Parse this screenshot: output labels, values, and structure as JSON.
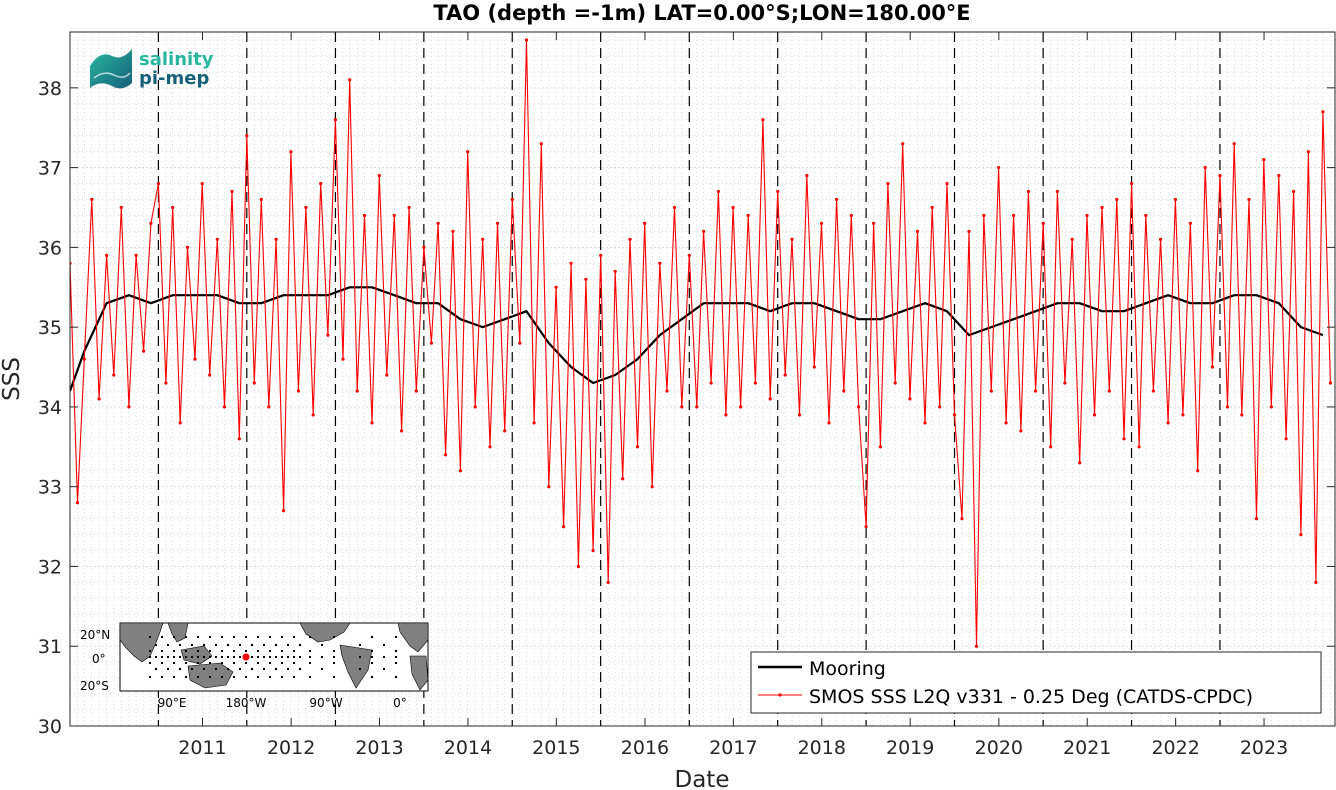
{
  "chart_data": {
    "type": "line",
    "title": "TAO (depth =-1m) LAT=0.00°S;LON=180.00°E",
    "xlabel": "Date",
    "ylabel": "SSS",
    "xlim": [
      "2010-01-01",
      "2024-04-20"
    ],
    "ylim": [
      30,
      38.7
    ],
    "grid": true,
    "minor_grid": true,
    "x_ticks": [
      "2011",
      "2012",
      "2013",
      "2014",
      "2015",
      "2016",
      "2017",
      "2018",
      "2019",
      "2020",
      "2021",
      "2022",
      "2023"
    ],
    "y_ticks": [
      "30",
      "31",
      "32",
      "33",
      "34",
      "35",
      "36",
      "37",
      "38"
    ],
    "year_divider_dates": [
      "2011-01-01",
      "2012-01-01",
      "2013-01-01",
      "2014-01-01",
      "2015-01-01",
      "2016-01-01",
      "2017-01-01",
      "2018-01-01",
      "2019-01-01",
      "2020-01-01",
      "2021-01-01",
      "2022-01-01",
      "2023-01-01"
    ],
    "legend_position": "bottom-right",
    "series": [
      {
        "name": "Mooring",
        "color": "#000000",
        "marker": "none",
        "x": [
          "2010-01-01",
          "2010-03-01",
          "2010-06-01",
          "2010-09-01",
          "2010-12-01",
          "2011-03-01",
          "2011-06-01",
          "2011-09-01",
          "2011-12-01",
          "2012-03-01",
          "2012-06-01",
          "2012-09-01",
          "2012-12-01",
          "2013-03-01",
          "2013-06-01",
          "2013-09-01",
          "2013-12-01",
          "2014-03-01",
          "2014-06-01",
          "2014-09-01",
          "2014-12-01",
          "2015-03-01",
          "2015-06-01",
          "2015-09-01",
          "2015-12-01",
          "2016-03-01",
          "2016-06-01",
          "2016-09-01",
          "2016-12-01",
          "2017-03-01",
          "2017-06-01",
          "2017-09-01",
          "2017-12-01",
          "2018-03-01",
          "2018-06-01",
          "2018-09-01",
          "2018-12-01",
          "2019-03-01",
          "2019-06-01",
          "2019-09-01",
          "2019-12-01",
          "2020-03-01",
          "2020-06-01",
          "2020-09-01",
          "2020-12-01",
          "2021-03-01",
          "2021-06-01",
          "2021-09-01",
          "2021-12-01",
          "2022-03-01",
          "2022-06-01",
          "2022-09-01",
          "2022-12-01",
          "2023-03-01",
          "2023-06-01",
          "2023-09-01",
          "2023-12-01",
          "2024-03-01"
        ],
        "values": [
          34.2,
          34.7,
          35.3,
          35.4,
          35.3,
          35.4,
          35.4,
          35.4,
          35.3,
          35.3,
          35.4,
          35.4,
          35.4,
          35.5,
          35.5,
          35.4,
          35.3,
          35.3,
          35.1,
          35.0,
          35.1,
          35.2,
          34.8,
          34.5,
          34.3,
          34.4,
          34.6,
          34.9,
          35.1,
          35.3,
          35.3,
          35.3,
          35.2,
          35.3,
          35.3,
          35.2,
          35.1,
          35.1,
          35.2,
          35.3,
          35.2,
          34.9,
          35.0,
          35.1,
          35.2,
          35.3,
          35.3,
          35.2,
          35.2,
          35.3,
          35.4,
          35.3,
          35.3,
          35.4,
          35.4,
          35.3,
          35.0,
          34.9
        ]
      },
      {
        "name": "SMOS SSS L2Q v331 - 0.25 Deg (CATDS-CPDC)",
        "color": "#ff0000",
        "marker": "dot",
        "x": [
          "2010-01-01",
          "2010-02-01",
          "2010-03-01",
          "2010-04-01",
          "2010-05-01",
          "2010-06-01",
          "2010-07-01",
          "2010-08-01",
          "2010-09-01",
          "2010-10-01",
          "2010-11-01",
          "2010-12-01",
          "2011-01-01",
          "2011-02-01",
          "2011-03-01",
          "2011-04-01",
          "2011-05-01",
          "2011-06-01",
          "2011-07-01",
          "2011-08-01",
          "2011-09-01",
          "2011-10-01",
          "2011-11-01",
          "2011-12-01",
          "2012-01-01",
          "2012-02-01",
          "2012-03-01",
          "2012-04-01",
          "2012-05-01",
          "2012-06-01",
          "2012-07-01",
          "2012-08-01",
          "2012-09-01",
          "2012-10-01",
          "2012-11-01",
          "2012-12-01",
          "2013-01-01",
          "2013-02-01",
          "2013-03-01",
          "2013-04-01",
          "2013-05-01",
          "2013-06-01",
          "2013-07-01",
          "2013-08-01",
          "2013-09-01",
          "2013-10-01",
          "2013-11-01",
          "2013-12-01",
          "2014-01-01",
          "2014-02-01",
          "2014-03-01",
          "2014-04-01",
          "2014-05-01",
          "2014-06-01",
          "2014-07-01",
          "2014-08-01",
          "2014-09-01",
          "2014-10-01",
          "2014-11-01",
          "2014-12-01",
          "2015-01-01",
          "2015-02-01",
          "2015-03-01",
          "2015-04-01",
          "2015-05-01",
          "2015-06-01",
          "2015-07-01",
          "2015-08-01",
          "2015-09-01",
          "2015-10-01",
          "2015-11-01",
          "2015-12-01",
          "2016-01-01",
          "2016-02-01",
          "2016-03-01",
          "2016-04-01",
          "2016-05-01",
          "2016-06-01",
          "2016-07-01",
          "2016-08-01",
          "2016-09-01",
          "2016-10-01",
          "2016-11-01",
          "2016-12-01",
          "2017-01-01",
          "2017-02-01",
          "2017-03-01",
          "2017-04-01",
          "2017-05-01",
          "2017-06-01",
          "2017-07-01",
          "2017-08-01",
          "2017-09-01",
          "2017-10-01",
          "2017-11-01",
          "2017-12-01",
          "2018-01-01",
          "2018-02-01",
          "2018-03-01",
          "2018-04-01",
          "2018-05-01",
          "2018-06-01",
          "2018-07-01",
          "2018-08-01",
          "2018-09-01",
          "2018-10-01",
          "2018-11-01",
          "2018-12-01",
          "2019-01-01",
          "2019-02-01",
          "2019-03-01",
          "2019-04-01",
          "2019-05-01",
          "2019-06-01",
          "2019-07-01",
          "2019-08-01",
          "2019-09-01",
          "2019-10-01",
          "2019-11-01",
          "2019-12-01",
          "2020-01-01",
          "2020-02-01",
          "2020-03-01",
          "2020-04-01",
          "2020-05-01",
          "2020-06-01",
          "2020-07-01",
          "2020-08-01",
          "2020-09-01",
          "2020-10-01",
          "2020-11-01",
          "2020-12-01",
          "2021-01-01",
          "2021-02-01",
          "2021-03-01",
          "2021-04-01",
          "2021-05-01",
          "2021-06-01",
          "2021-07-01",
          "2021-08-01",
          "2021-09-01",
          "2021-10-01",
          "2021-11-01",
          "2021-12-01",
          "2022-01-01",
          "2022-02-01",
          "2022-03-01",
          "2022-04-01",
          "2022-05-01",
          "2022-06-01",
          "2022-07-01",
          "2022-08-01",
          "2022-09-01",
          "2022-10-01",
          "2022-11-01",
          "2022-12-01",
          "2023-01-01",
          "2023-02-01",
          "2023-03-01",
          "2023-04-01",
          "2023-05-01",
          "2023-06-01",
          "2023-07-01",
          "2023-08-01",
          "2023-09-01",
          "2023-10-01",
          "2023-11-01",
          "2023-12-01",
          "2024-01-01",
          "2024-02-01",
          "2024-03-01",
          "2024-04-01"
        ],
        "values": [
          35.8,
          32.8,
          34.6,
          36.6,
          34.1,
          35.9,
          34.4,
          36.5,
          34.0,
          35.9,
          34.7,
          36.3,
          36.8,
          34.3,
          36.5,
          33.8,
          36.0,
          34.6,
          36.8,
          34.4,
          36.1,
          34.0,
          36.7,
          33.6,
          37.4,
          34.3,
          36.6,
          34.0,
          36.1,
          32.7,
          37.2,
          34.2,
          36.5,
          33.9,
          36.8,
          34.9,
          37.6,
          34.6,
          38.1,
          34.2,
          36.4,
          33.8,
          36.9,
          34.4,
          36.4,
          33.7,
          36.5,
          34.2,
          36.0,
          34.8,
          36.3,
          33.4,
          36.2,
          33.2,
          37.2,
          34.0,
          36.1,
          33.5,
          36.3,
          33.7,
          36.6,
          34.8,
          38.6,
          33.8,
          37.3,
          33.0,
          35.5,
          32.5,
          35.8,
          32.0,
          35.6,
          32.2,
          35.9,
          31.8,
          35.7,
          33.1,
          36.1,
          33.5,
          36.3,
          33.0,
          35.8,
          34.2,
          36.5,
          34.0,
          35.9,
          34.0,
          36.2,
          34.3,
          36.7,
          33.9,
          36.5,
          34.0,
          36.4,
          34.3,
          37.6,
          34.1,
          36.7,
          34.4,
          36.1,
          33.9,
          36.9,
          34.5,
          36.3,
          33.8,
          36.6,
          34.2,
          36.4,
          34.0,
          32.5,
          36.3,
          33.5,
          36.8,
          34.3,
          37.3,
          34.1,
          36.2,
          33.8,
          36.5,
          34.0,
          36.8,
          33.9,
          32.6,
          36.2,
          31.0,
          36.4,
          34.2,
          37.0,
          33.8,
          36.4,
          33.7,
          36.7,
          34.2,
          36.3,
          33.5,
          36.7,
          34.3,
          36.1,
          33.3,
          36.4,
          33.9,
          36.5,
          34.2,
          36.6,
          33.6,
          36.8,
          33.5,
          36.4,
          34.2,
          36.1,
          33.8,
          36.6,
          33.9,
          36.3,
          33.2,
          37.0,
          34.5,
          36.9,
          34.0,
          37.3,
          33.9,
          36.6,
          32.6,
          37.1,
          34.0,
          36.9,
          33.6,
          36.7,
          32.4,
          37.2,
          31.8,
          37.7,
          34.3
        ]
      }
    ],
    "inset_map": {
      "lat_labels": [
        "20°N",
        "0°",
        "20°S"
      ],
      "lon_labels": [
        "90°E",
        "180°W",
        "90°W",
        "0°"
      ],
      "land_color": "#808080",
      "highlight_color": "#ff0000"
    },
    "logo": {
      "line1": "salinity",
      "line2": "pi-mep"
    }
  }
}
